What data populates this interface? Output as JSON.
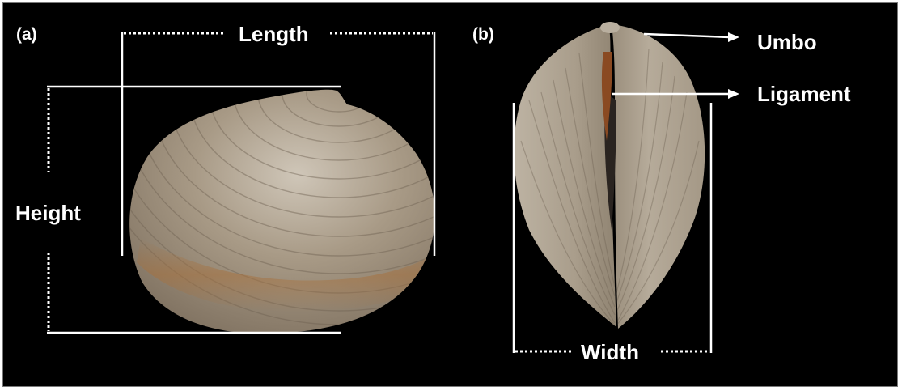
{
  "panels": [
    {
      "label": "(a)"
    },
    {
      "label": "(b)"
    }
  ],
  "dimensions": {
    "length": "Length",
    "height": "Height",
    "width": "Width"
  },
  "annotations": {
    "umbo": "Umbo",
    "ligament": "Ligament"
  },
  "colors": {
    "background": "#000000",
    "label": "#ffffff",
    "shell_base": "#9d8f7c",
    "shell_highlight": "#cdc3b4",
    "shell_band": "#a6713e",
    "ligament": "#8a4a22"
  }
}
